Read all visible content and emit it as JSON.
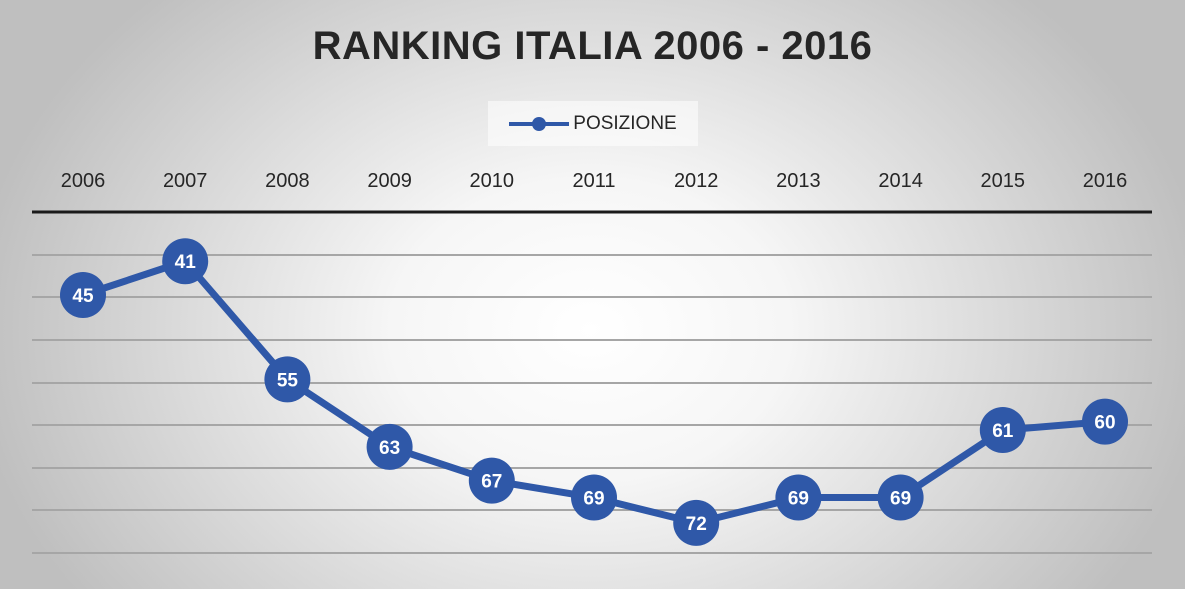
{
  "chart_data": {
    "type": "line",
    "title": "RANKING ITALIA 2006 - 2016",
    "categories": [
      "2006",
      "2007",
      "2008",
      "2009",
      "2010",
      "2011",
      "2012",
      "2013",
      "2014",
      "2015",
      "2016"
    ],
    "series": [
      {
        "name": "POSIZIONE",
        "values": [
          45,
          41,
          55,
          63,
          67,
          69,
          72,
          69,
          69,
          61,
          60
        ]
      }
    ],
    "y_axis": "inverted",
    "x_axis_position": "top",
    "legend_position": "top",
    "data_labels": true,
    "grid": true
  },
  "colors": {
    "series": "#2f58a8",
    "grid": "#a6a6a6",
    "axis": "#1a1a1a",
    "title": "#262626"
  }
}
